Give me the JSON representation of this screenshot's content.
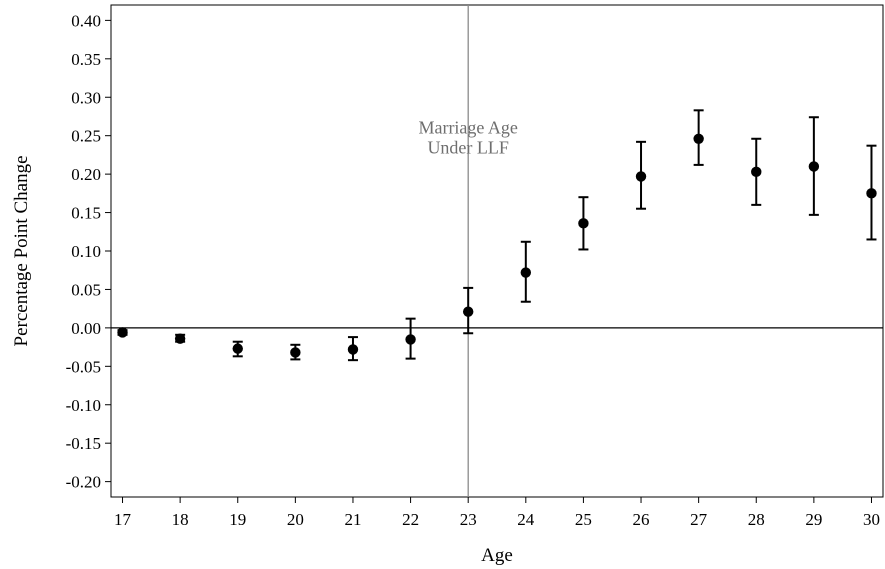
{
  "chart_data": {
    "type": "scatter",
    "xlabel": "Age",
    "ylabel": "Percentage Point Change",
    "xlim": [
      16.8,
      30.2
    ],
    "ylim": [
      -0.22,
      0.42
    ],
    "x_ticks": [
      17,
      18,
      19,
      20,
      21,
      22,
      23,
      24,
      25,
      26,
      27,
      28,
      29,
      30
    ],
    "x_tick_labels": [
      "17",
      "18",
      "19",
      "20",
      "21",
      "22",
      "23",
      "24",
      "25",
      "26",
      "27",
      "28",
      "29",
      "30"
    ],
    "y_ticks": [
      -0.2,
      -0.15,
      -0.1,
      -0.05,
      0.0,
      0.05,
      0.1,
      0.15,
      0.2,
      0.25,
      0.3,
      0.35,
      0.4
    ],
    "y_tick_labels": [
      "-0.20",
      "-0.15",
      "-0.10",
      "-0.05",
      "0.00",
      "0.05",
      "0.10",
      "0.15",
      "0.20",
      "0.25",
      "0.30",
      "0.35",
      "0.40"
    ],
    "grid": false,
    "series": [
      {
        "marker": "filled-circle",
        "color": "#000000",
        "points": [
          {
            "x": 17,
            "y": -0.006,
            "ci_low": -0.009,
            "ci_high": -0.003
          },
          {
            "x": 18,
            "y": -0.014,
            "ci_low": -0.018,
            "ci_high": -0.009
          },
          {
            "x": 19,
            "y": -0.027,
            "ci_low": -0.037,
            "ci_high": -0.018
          },
          {
            "x": 20,
            "y": -0.032,
            "ci_low": -0.041,
            "ci_high": -0.022
          },
          {
            "x": 21,
            "y": -0.028,
            "ci_low": -0.042,
            "ci_high": -0.012
          },
          {
            "x": 22,
            "y": -0.015,
            "ci_low": -0.04,
            "ci_high": 0.012
          },
          {
            "x": 23,
            "y": 0.021,
            "ci_low": -0.007,
            "ci_high": 0.052
          },
          {
            "x": 24,
            "y": 0.072,
            "ci_low": 0.034,
            "ci_high": 0.112
          },
          {
            "x": 25,
            "y": 0.136,
            "ci_low": 0.102,
            "ci_high": 0.17
          },
          {
            "x": 26,
            "y": 0.197,
            "ci_low": 0.155,
            "ci_high": 0.242
          },
          {
            "x": 27,
            "y": 0.246,
            "ci_low": 0.212,
            "ci_high": 0.283
          },
          {
            "x": 28,
            "y": 0.203,
            "ci_low": 0.16,
            "ci_high": 0.246
          },
          {
            "x": 29,
            "y": 0.21,
            "ci_low": 0.147,
            "ci_high": 0.274
          },
          {
            "x": 30,
            "y": 0.175,
            "ci_low": 0.115,
            "ci_high": 0.237
          }
        ]
      }
    ],
    "reference_lines": {
      "horizontal_y": 0.0,
      "vertical_x": 23,
      "vertical_color": "#8a8a8a"
    },
    "annotation": {
      "x": 23,
      "y": 0.25,
      "lines": [
        "Marriage Age",
        "Under LLF"
      ]
    }
  }
}
